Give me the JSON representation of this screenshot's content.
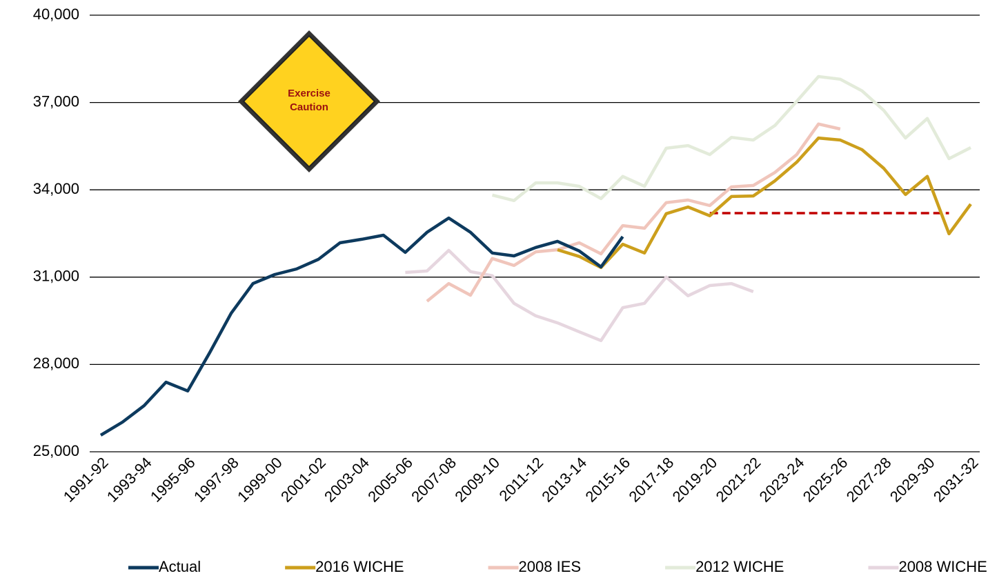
{
  "chart_data": {
    "type": "line",
    "categories": [
      "1991-92",
      null,
      "1993-94",
      null,
      "1995-96",
      null,
      "1997-98",
      null,
      "1999-00",
      null,
      "2001-02",
      null,
      "2003-04",
      null,
      "2005-06",
      null,
      "2007-08",
      null,
      "2009-10",
      null,
      "2011-12",
      null,
      "2013-14",
      null,
      "2015-16",
      null,
      "2017-18",
      null,
      "2019-20",
      null,
      "2021-22",
      null,
      "2023-24",
      null,
      "2025-26",
      null,
      "2027-28",
      null,
      "2029-30",
      null,
      "2031-32"
    ],
    "ylim": [
      25000,
      40000
    ],
    "yticks": [
      {
        "value": 25000,
        "label": "25,000"
      },
      {
        "value": 28000,
        "label": "28,000"
      },
      {
        "value": 31000,
        "label": "31,000"
      },
      {
        "value": 34000,
        "label": "34,000"
      },
      {
        "value": 37000,
        "label": "37,000"
      },
      {
        "value": 40000,
        "label": "40,000"
      }
    ],
    "grid": true,
    "legend": "bottom",
    "annotation": {
      "lines": [
        "Exercise",
        "Caution"
      ]
    },
    "series": [
      {
        "name": "2012 WICHE",
        "color": "#e3ebda",
        "values": [
          null,
          null,
          null,
          null,
          null,
          null,
          null,
          null,
          null,
          null,
          null,
          null,
          null,
          null,
          null,
          null,
          null,
          null,
          33820,
          33630,
          34240,
          34240,
          34120,
          33700,
          34460,
          34120,
          35430,
          35520,
          35210,
          35800,
          35710,
          36210,
          37040,
          37890,
          37800,
          37400,
          36730,
          35780,
          36450,
          35070,
          35450
        ]
      },
      {
        "name": "2008 WICHE",
        "color": "#e6d6df",
        "values": [
          null,
          null,
          null,
          null,
          null,
          null,
          null,
          null,
          null,
          null,
          null,
          null,
          null,
          null,
          31160,
          31210,
          31920,
          31190,
          31050,
          30100,
          29670,
          29430,
          29120,
          28820,
          29950,
          30100,
          31000,
          30360,
          30710,
          30780,
          30500,
          null,
          null,
          null,
          null,
          null,
          null,
          null,
          null,
          null,
          null
        ]
      },
      {
        "name": "2008 IES",
        "color": "#f0c5bb",
        "values": [
          null,
          null,
          null,
          null,
          null,
          null,
          null,
          null,
          null,
          null,
          null,
          null,
          null,
          null,
          null,
          30170,
          30780,
          30380,
          31640,
          31400,
          31870,
          31940,
          32180,
          31800,
          32770,
          32680,
          33560,
          33650,
          33460,
          34100,
          34150,
          34600,
          35210,
          36260,
          36090,
          null,
          null,
          null,
          null,
          null,
          null
        ]
      },
      {
        "color": "#c00000",
        "dashed": true,
        "values": [
          null,
          null,
          null,
          null,
          null,
          null,
          null,
          null,
          null,
          null,
          null,
          null,
          null,
          null,
          null,
          null,
          null,
          null,
          null,
          null,
          null,
          null,
          null,
          null,
          null,
          null,
          null,
          null,
          33200,
          33200,
          33200,
          33200,
          33200,
          33200,
          33200,
          33200,
          33200,
          33200,
          33200,
          33200,
          null
        ]
      },
      {
        "name": "2016 WICHE",
        "color": "#cc9f1c",
        "values": [
          null,
          null,
          null,
          null,
          null,
          null,
          null,
          null,
          null,
          null,
          null,
          null,
          null,
          null,
          null,
          null,
          null,
          null,
          null,
          null,
          null,
          31940,
          31710,
          31330,
          32130,
          31830,
          33180,
          33410,
          33110,
          33770,
          33790,
          34310,
          34950,
          35780,
          35710,
          35380,
          34740,
          33840,
          34460,
          32490,
          33510
        ]
      },
      {
        "name": "Actual",
        "color": "#0d3a5e",
        "values": [
          25570,
          26020,
          26590,
          27390,
          27090,
          28390,
          29760,
          30780,
          31090,
          31280,
          31610,
          32180,
          32300,
          32440,
          31850,
          32540,
          33030,
          32540,
          31830,
          31730,
          32020,
          32230,
          31900,
          31350,
          32390,
          null,
          null,
          null,
          null,
          null,
          null,
          null,
          null,
          null,
          null,
          null,
          null,
          null,
          null,
          null,
          null
        ]
      }
    ]
  }
}
